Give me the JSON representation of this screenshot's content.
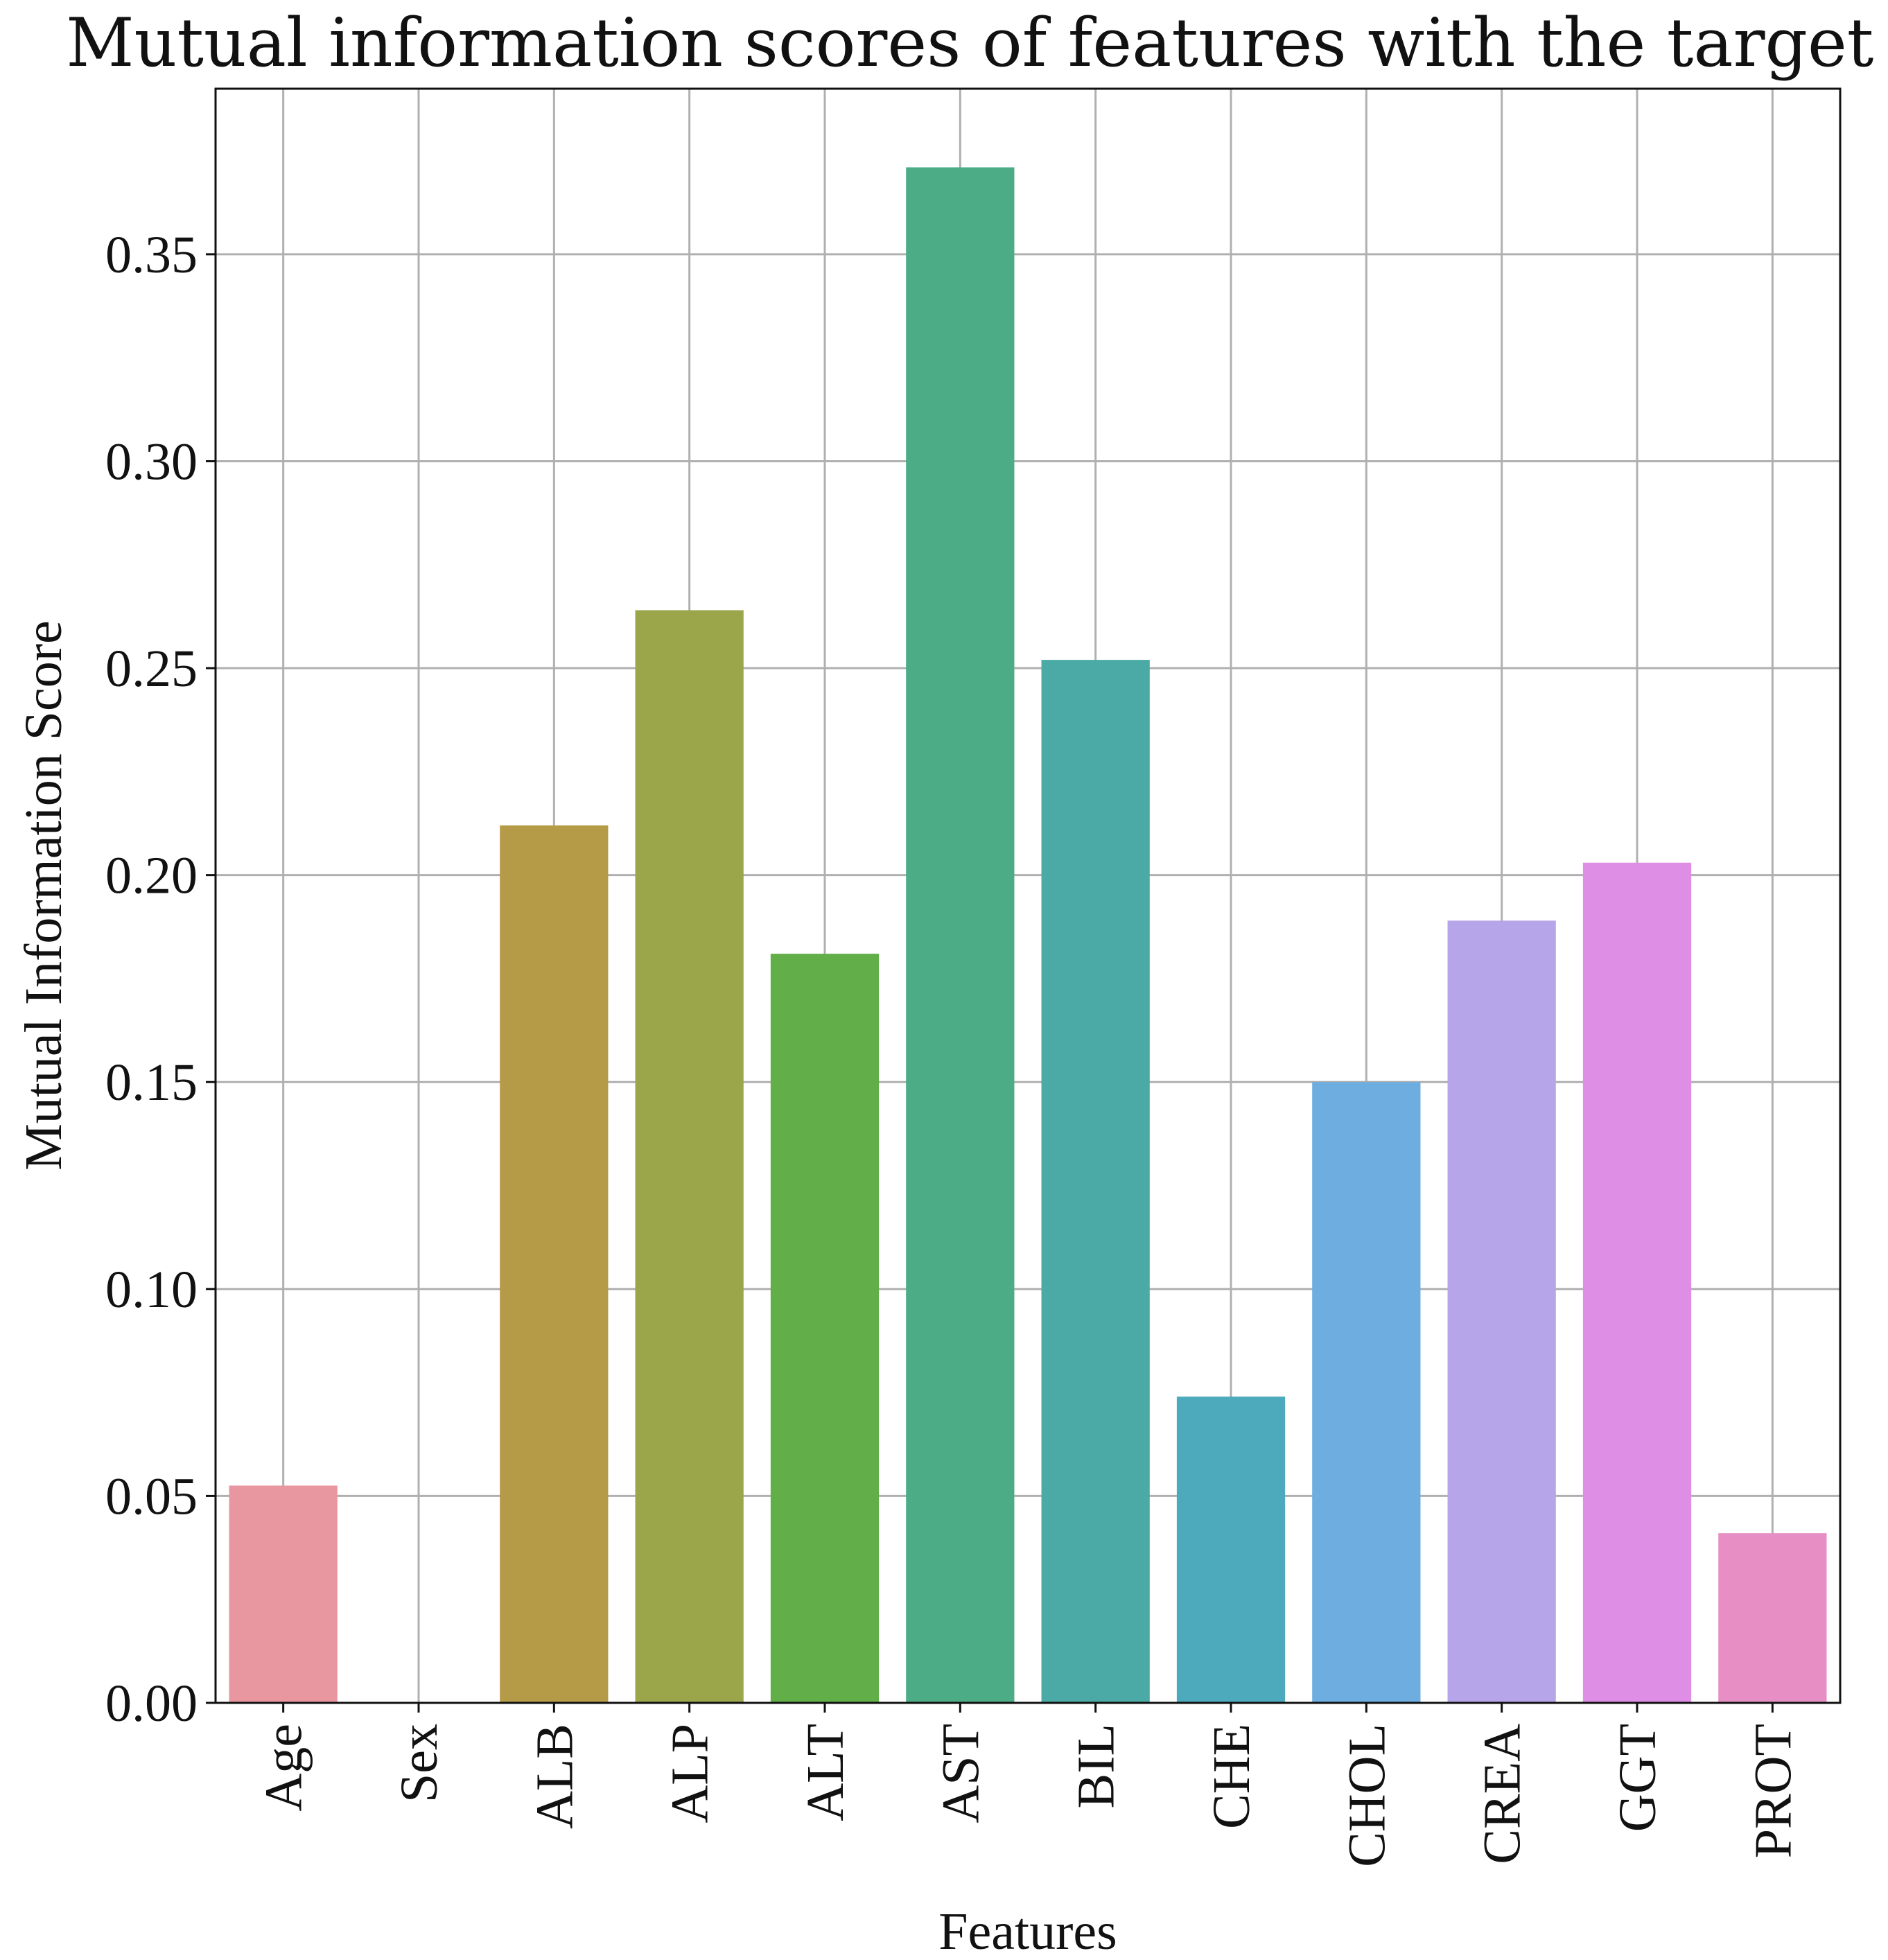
{
  "chart_data": {
    "type": "bar",
    "title": "Mutual information scores of features with the target label",
    "xlabel": "Features",
    "ylabel": "Mutual Information Score",
    "categories": [
      "Age",
      "Sex",
      "ALB",
      "ALP",
      "ALT",
      "AST",
      "BIL",
      "CHE",
      "CHOL",
      "CREA",
      "GGT",
      "PROT"
    ],
    "values": [
      0.0525,
      0.0,
      0.212,
      0.264,
      0.181,
      0.371,
      0.252,
      0.074,
      0.15,
      0.189,
      0.203,
      0.041
    ],
    "colors": [
      "#e8969f",
      "#c68e60",
      "#b59b48",
      "#9aa649",
      "#62ae48",
      "#4bac86",
      "#4baaa6",
      "#4daabc",
      "#6dade0",
      "#b6a6e9",
      "#df8ee6",
      "#e78fc4"
    ],
    "ylim": [
      0,
      0.39
    ],
    "yticks": [
      0.0,
      0.05,
      0.1,
      0.15,
      0.2,
      0.25,
      0.3,
      0.35
    ],
    "ytick_labels": [
      "0.00",
      "0.05",
      "0.10",
      "0.15",
      "0.20",
      "0.25",
      "0.30",
      "0.35"
    ],
    "grid": true,
    "legend": "none"
  }
}
